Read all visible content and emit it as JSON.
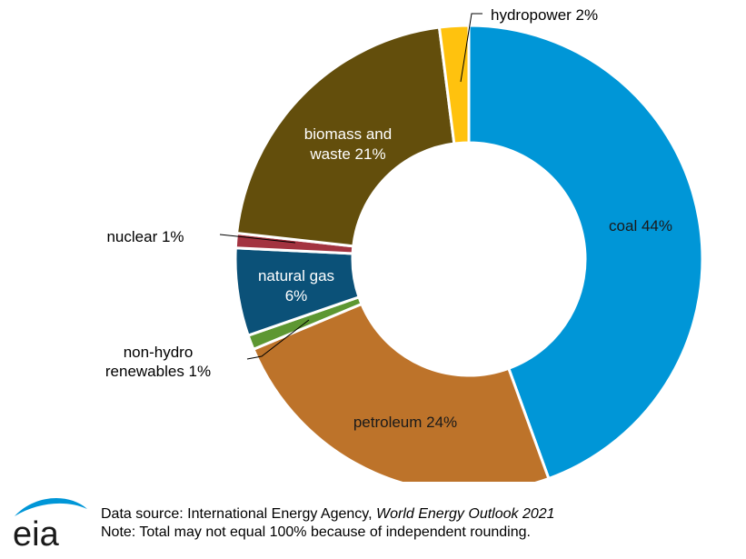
{
  "chart_data": {
    "type": "pie",
    "variant": "donut",
    "slices": [
      {
        "label": "coal",
        "value": 44,
        "display": "coal 44%",
        "color": "#0096d7"
      },
      {
        "label": "petroleum",
        "value": 24,
        "display": "petroleum 24%",
        "color": "#bd732a"
      },
      {
        "label": "non-hydro renewables",
        "value": 1,
        "display": "non-hydro renewables 1%",
        "color": "#5d9732"
      },
      {
        "label": "natural gas",
        "value": 6,
        "display": "natural gas 6%",
        "color": "#0b5178"
      },
      {
        "label": "nuclear",
        "value": 1,
        "display": "nuclear 1%",
        "color": "#a33340"
      },
      {
        "label": "biomass and waste",
        "value": 21,
        "display": "biomass and waste 21%",
        "color": "#634e0c"
      },
      {
        "label": "hydropower",
        "value": 2,
        "display": "hydropower 2%",
        "color": "#ffc20e"
      }
    ],
    "legend": "none (direct labels)"
  },
  "labels": {
    "coal": "coal 44%",
    "petroleum": "petroleum 24%",
    "non_hydro_line1": "non-hydro",
    "non_hydro_line2": "renewables 1%",
    "natural_gas_line1": "natural gas",
    "natural_gas_line2": "6%",
    "nuclear": "nuclear 1%",
    "biomass_line1": "biomass and",
    "biomass_line2": "waste 21%",
    "hydropower": "hydropower 2%"
  },
  "footer": {
    "logo_text": "eia",
    "source_prefix": "Data source: International Energy Agency, ",
    "source_title": "World Energy Outlook 2021",
    "note": "Note: Total may not equal 100% because of independent rounding."
  }
}
